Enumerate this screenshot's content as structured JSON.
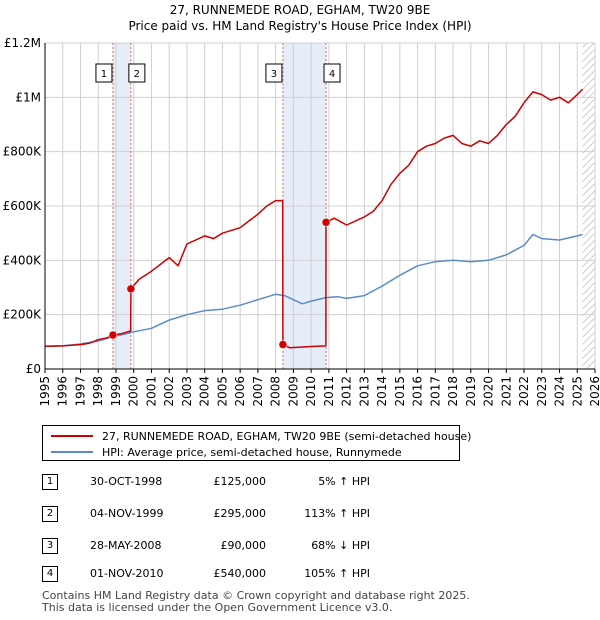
{
  "chart_data": {
    "type": "line",
    "title": "27, RUNNEMEDE ROAD, EGHAM, TW20 9BE",
    "subtitle": "Price paid vs. HM Land Registry's House Price Index (HPI)",
    "xlim": [
      1995,
      2026
    ],
    "ylim": [
      0,
      1200000
    ],
    "x_ticks": [
      "1995",
      "1996",
      "1997",
      "1998",
      "1999",
      "2000",
      "2001",
      "2002",
      "2003",
      "2004",
      "2005",
      "2006",
      "2007",
      "2008",
      "2009",
      "2010",
      "2011",
      "2012",
      "2013",
      "2014",
      "2015",
      "2016",
      "2017",
      "2018",
      "2019",
      "2020",
      "2021",
      "2022",
      "2023",
      "2024",
      "2025",
      "2026"
    ],
    "y_ticks": [
      {
        "value": 0,
        "label": "£0"
      },
      {
        "value": 200000,
        "label": "£200K"
      },
      {
        "value": 400000,
        "label": "£400K"
      },
      {
        "value": 600000,
        "label": "£600K"
      },
      {
        "value": 800000,
        "label": "£800K"
      },
      {
        "value": 1000000,
        "label": "£1M"
      },
      {
        "value": 1200000,
        "label": "£1.2M"
      }
    ],
    "shaded_ranges": [
      [
        1998.83,
        1999.84
      ],
      [
        2008.41,
        2010.84
      ]
    ],
    "series": [
      {
        "name": "27, RUNNEMEDE ROAD, EGHAM, TW20 9BE (semi-detached house)",
        "color": "#cc0000",
        "x": [
          1995.0,
          1996.0,
          1997.0,
          1997.5,
          1998.0,
          1998.5,
          1998.83,
          1999.3,
          1999.83,
          1999.84,
          2000.3,
          2001.0,
          2002.0,
          2002.5,
          2003.0,
          2004.0,
          2004.5,
          2005.0,
          2006.0,
          2006.5,
          2007.0,
          2007.5,
          2008.0,
          2008.4,
          2008.41,
          2008.8,
          2009.3,
          2010.0,
          2010.83,
          2010.84,
          2011.3,
          2012.0,
          2013.0,
          2013.5,
          2014.0,
          2014.5,
          2015.0,
          2015.5,
          2016.0,
          2016.5,
          2017.0,
          2017.5,
          2018.0,
          2018.5,
          2019.0,
          2019.5,
          2020.0,
          2020.5,
          2021.0,
          2021.5,
          2022.0,
          2022.5,
          2023.0,
          2023.5,
          2024.0,
          2024.5,
          2025.0,
          2025.3
        ],
        "y": [
          84000,
          85000,
          90000,
          95000,
          108000,
          115000,
          125000,
          130000,
          140000,
          295000,
          330000,
          360000,
          410000,
          380000,
          460000,
          490000,
          480000,
          500000,
          520000,
          545000,
          570000,
          600000,
          620000,
          620000,
          90000,
          78000,
          80000,
          83000,
          85000,
          540000,
          555000,
          530000,
          560000,
          580000,
          620000,
          680000,
          720000,
          750000,
          800000,
          820000,
          830000,
          850000,
          860000,
          830000,
          820000,
          840000,
          830000,
          860000,
          900000,
          930000,
          980000,
          1020000,
          1010000,
          990000,
          1000000,
          980000,
          1010000,
          1030000
        ]
      },
      {
        "name": "HPI: Average price, semi-detached house, Runnymede",
        "color": "#5b8cc8",
        "x": [
          1995.0,
          1996.0,
          1997.0,
          1998.0,
          1998.83,
          1999.5,
          2000.0,
          2001.0,
          2002.0,
          2003.0,
          2004.0,
          2005.0,
          2006.0,
          2007.0,
          2008.0,
          2008.5,
          2009.0,
          2009.5,
          2010.0,
          2010.83,
          2011.5,
          2012.0,
          2013.0,
          2014.0,
          2015.0,
          2016.0,
          2017.0,
          2018.0,
          2019.0,
          2020.0,
          2021.0,
          2022.0,
          2022.5,
          2023.0,
          2024.0,
          2025.0,
          2025.3
        ],
        "y": [
          84000,
          85000,
          92000,
          103000,
          119000,
          128000,
          137000,
          150000,
          180000,
          200000,
          215000,
          220000,
          235000,
          255000,
          275000,
          270000,
          255000,
          240000,
          250000,
          263000,
          266000,
          260000,
          270000,
          305000,
          345000,
          380000,
          395000,
          400000,
          395000,
          400000,
          420000,
          455000,
          495000,
          480000,
          475000,
          490000,
          495000
        ]
      }
    ],
    "annotations": [
      {
        "label": "1",
        "x": 1998.83,
        "price": 125000
      },
      {
        "label": "2",
        "x": 1999.84,
        "price": 295000
      },
      {
        "label": "3",
        "x": 2008.41,
        "price": 90000
      },
      {
        "label": "4",
        "x": 2010.84,
        "price": 540000
      }
    ]
  },
  "legend": {
    "property_label": "27, RUNNEMEDE ROAD, EGHAM, TW20 9BE (semi-detached house)",
    "hpi_label": "HPI: Average price, semi-detached house, Runnymede"
  },
  "transactions": [
    {
      "num": "1",
      "date": "30-OCT-1998",
      "price": "£125,000",
      "hpi": "5% ↑ HPI"
    },
    {
      "num": "2",
      "date": "04-NOV-1999",
      "price": "£295,000",
      "hpi": "113% ↑ HPI"
    },
    {
      "num": "3",
      "date": "28-MAY-2008",
      "price": "£90,000",
      "hpi": "68% ↓ HPI"
    },
    {
      "num": "4",
      "date": "01-NOV-2010",
      "price": "£540,000",
      "hpi": "105% ↑ HPI"
    }
  ],
  "footer": {
    "line1": "Contains HM Land Registry data © Crown copyright and database right 2025.",
    "line2": "This data is licensed under the Open Government Licence v3.0."
  }
}
